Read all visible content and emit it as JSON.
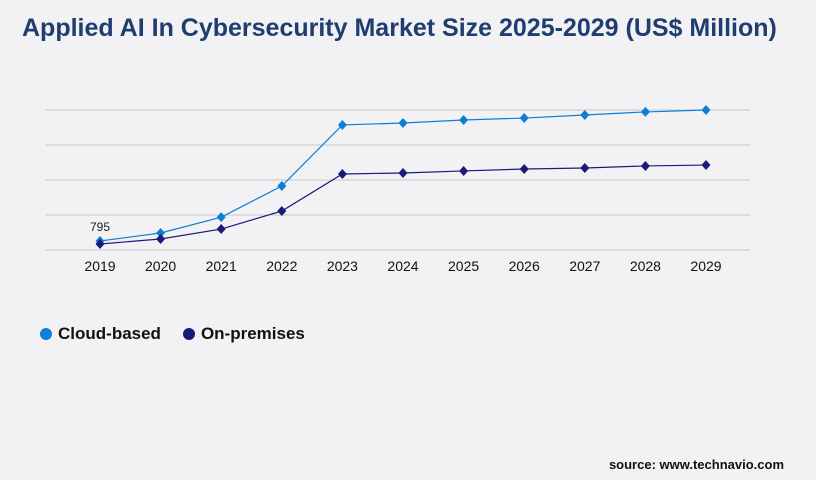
{
  "chart_data": {
    "type": "line",
    "title": "Applied AI In Cybersecurity Market Size 2025-2029 (US$ Million)",
    "categories": [
      "2019",
      "2020",
      "2021",
      "2022",
      "2023",
      "2024",
      "2025",
      "2026",
      "2027",
      "2028",
      "2029"
    ],
    "series": [
      {
        "name": "Cloud-based",
        "color": "#0a7fd4",
        "values": [
          795,
          1500,
          2900,
          5650,
          11040,
          11210,
          11480,
          11650,
          11920,
          12190,
          12360
        ]
      },
      {
        "name": "On-premises",
        "color": "#1a1a7a",
        "values": [
          530,
          970,
          1850,
          3440,
          6710,
          6800,
          6980,
          7150,
          7240,
          7420,
          7500
        ]
      }
    ],
    "data_labels": [
      {
        "series": "Cloud-based",
        "category": "2019",
        "text": "795"
      }
    ],
    "ylim": [
      0,
      12360
    ],
    "grid": true,
    "y_tick_labels_shown": false,
    "legend_placement": "bottom-left",
    "marker": "diamond"
  },
  "source": "source: www.technavio.com"
}
